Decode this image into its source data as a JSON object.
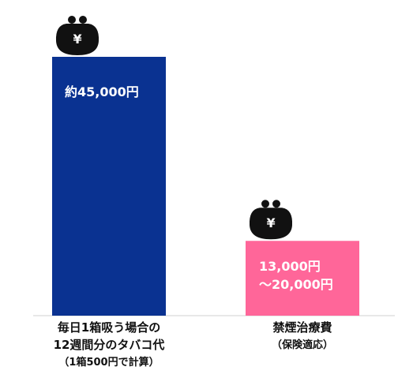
{
  "chart_data": {
    "type": "bar",
    "categories": [
      "毎日1箱吸う場合の\n12週間分のタバコ代",
      "禁煙治療費"
    ],
    "category_notes": [
      "（1箱500円で計算）",
      "（保険適応）"
    ],
    "values": [
      45000,
      13000
    ],
    "value_labels": [
      "約45,000円",
      "13,000円\n～20,000円"
    ],
    "colors": [
      "#0a3291",
      "#ff6699"
    ],
    "icon_text": "¥",
    "ylim": [
      0,
      45000
    ]
  }
}
